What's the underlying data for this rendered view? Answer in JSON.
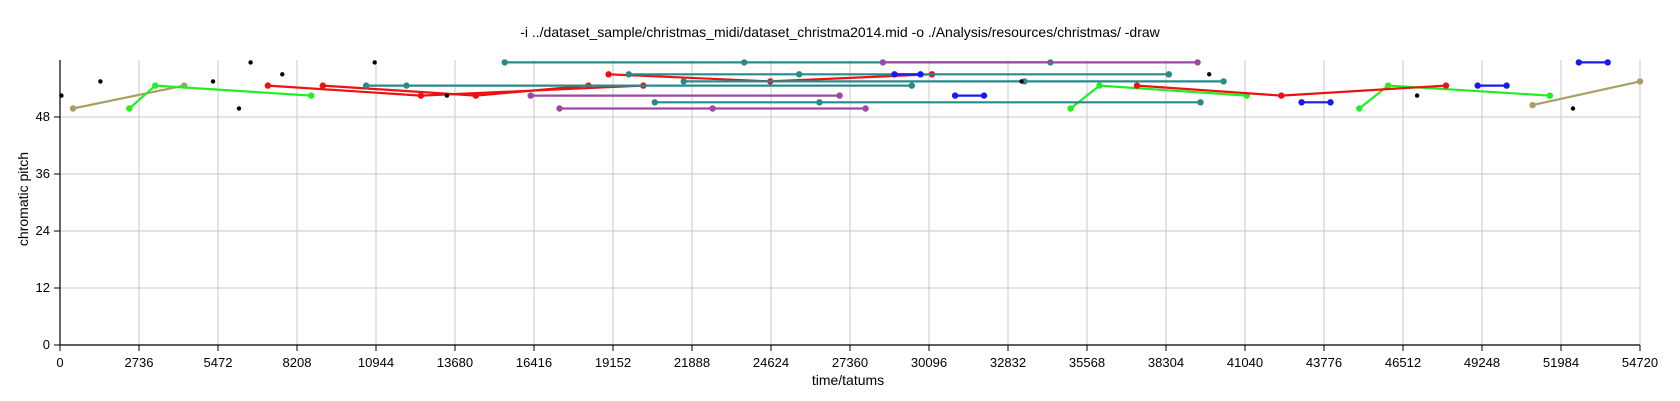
{
  "chart_data": {
    "type": "scatter",
    "title": "-i ../dataset_sample/christmas_midi/dataset_christma2014.mid -o ./Analysis/resources/christmas/ -draw",
    "xlabel": "time/tatums",
    "ylabel": "chromatic pitch",
    "xlim": [
      0,
      54720
    ],
    "ylim": [
      0,
      60
    ],
    "x_ticks": [
      0,
      2736,
      5472,
      8208,
      10944,
      13680,
      16416,
      19152,
      21888,
      24624,
      27360,
      30096,
      32832,
      35568,
      38304,
      41040,
      43776,
      46512,
      49248,
      51984,
      54720
    ],
    "y_ticks": [
      0,
      12,
      24,
      36,
      48
    ],
    "grid": true,
    "colors": {
      "olive": "#a8a060",
      "green": "#22ee22",
      "red": "#ee1111",
      "teal": "#2a8a8a",
      "purple": "#9a4aa0",
      "blue": "#1a1aee",
      "black": "#000000",
      "grid": "#c8c8c8"
    },
    "series": [
      {
        "color": "olive",
        "points": [
          [
            450,
            49.8
          ],
          [
            4300,
            54.6
          ]
        ]
      },
      {
        "color": "olive",
        "points": [
          [
            51000,
            50.5
          ],
          [
            54720,
            55.5
          ]
        ]
      },
      {
        "color": "green",
        "points": [
          [
            2400,
            49.8
          ],
          [
            3300,
            54.6
          ],
          [
            8700,
            52.5
          ]
        ]
      },
      {
        "color": "green",
        "points": [
          [
            35000,
            49.8
          ],
          [
            36000,
            54.6
          ],
          [
            41100,
            52.5
          ]
        ]
      },
      {
        "color": "green",
        "points": [
          [
            45000,
            49.8
          ],
          [
            46000,
            54.6
          ],
          [
            51600,
            52.5
          ]
        ]
      },
      {
        "color": "red",
        "points": [
          [
            7200,
            54.6
          ],
          [
            12500,
            52.5
          ],
          [
            20200,
            54.6
          ]
        ]
      },
      {
        "color": "red",
        "points": [
          [
            9100,
            54.6
          ],
          [
            14400,
            52.5
          ],
          [
            18300,
            54.6
          ]
        ]
      },
      {
        "color": "red",
        "points": [
          [
            19000,
            57.0
          ],
          [
            24600,
            55.5
          ],
          [
            30200,
            57.0
          ]
        ]
      },
      {
        "color": "red",
        "points": [
          [
            37300,
            54.6
          ],
          [
            42300,
            52.5
          ],
          [
            48000,
            54.6
          ]
        ]
      },
      {
        "color": "teal",
        "points": [
          [
            15400,
            59.5
          ],
          [
            23700,
            59.5
          ],
          [
            34300,
            59.5
          ]
        ]
      },
      {
        "color": "teal",
        "points": [
          [
            19700,
            57.0
          ],
          [
            25600,
            57.0
          ],
          [
            38400,
            57.0
          ]
        ]
      },
      {
        "color": "teal",
        "points": [
          [
            21600,
            55.5
          ],
          [
            33400,
            55.5
          ],
          [
            40300,
            55.5
          ]
        ]
      },
      {
        "color": "teal",
        "points": [
          [
            10600,
            54.6
          ],
          [
            12000,
            54.6
          ],
          [
            29500,
            54.6
          ]
        ]
      },
      {
        "color": "teal",
        "points": [
          [
            20600,
            51.1
          ],
          [
            26300,
            51.1
          ],
          [
            39500,
            51.1
          ]
        ]
      },
      {
        "color": "purple",
        "points": [
          [
            28500,
            59.5
          ],
          [
            39400,
            59.5
          ]
        ]
      },
      {
        "color": "purple",
        "points": [
          [
            16300,
            52.5
          ],
          [
            27000,
            52.5
          ]
        ]
      },
      {
        "color": "purple",
        "points": [
          [
            17300,
            49.8
          ],
          [
            22600,
            49.8
          ],
          [
            27900,
            49.8
          ]
        ]
      },
      {
        "color": "blue",
        "points": [
          [
            28900,
            57.0
          ],
          [
            29800,
            57.0
          ]
        ]
      },
      {
        "color": "blue",
        "points": [
          [
            31000,
            52.5
          ],
          [
            32000,
            52.5
          ]
        ]
      },
      {
        "color": "blue",
        "points": [
          [
            43000,
            51.1
          ],
          [
            44000,
            51.1
          ]
        ]
      },
      {
        "color": "blue",
        "points": [
          [
            49100,
            54.6
          ],
          [
            50100,
            54.6
          ]
        ]
      },
      {
        "color": "blue",
        "points": [
          [
            52600,
            59.5
          ],
          [
            53600,
            59.5
          ]
        ]
      }
    ],
    "black_points": [
      [
        50,
        52.5
      ],
      [
        1400,
        55.5
      ],
      [
        5300,
        55.5
      ],
      [
        6200,
        49.8
      ],
      [
        6600,
        59.5
      ],
      [
        7700,
        57.0
      ],
      [
        10900,
        59.5
      ],
      [
        13400,
        52.5
      ],
      [
        39800,
        57.0
      ],
      [
        47000,
        52.5
      ],
      [
        52400,
        49.8
      ],
      [
        33300,
        55.5
      ]
    ]
  }
}
